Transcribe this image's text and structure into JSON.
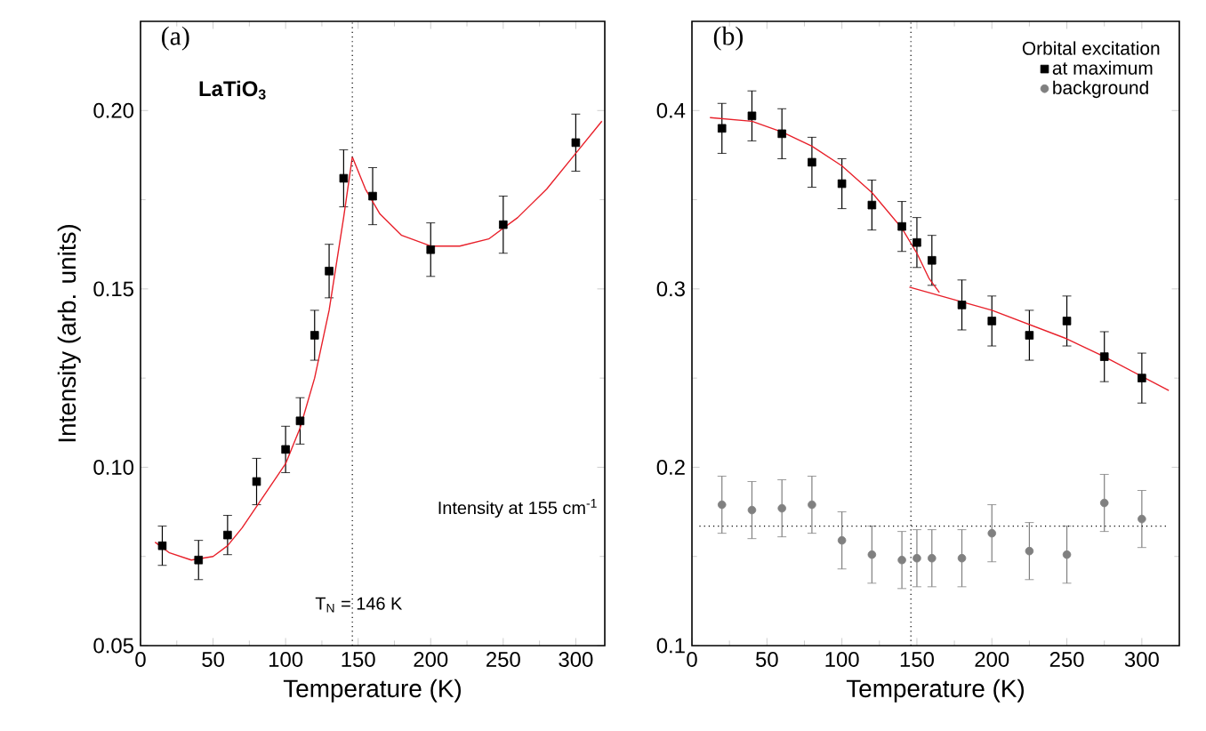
{
  "chart_data": [
    {
      "type": "scatter",
      "title": "(a)",
      "xlabel": "Temperature   (K)",
      "ylabel": "Intensity   (arb. units)",
      "xlim": [
        0,
        320
      ],
      "ylim": [
        0.05,
        0.225
      ],
      "xticks": [
        0,
        50,
        100,
        150,
        200,
        250,
        300
      ],
      "yticks": [
        0.05,
        {
          "value": 0.1,
          "label": "0.10"
        },
        0.15,
        {
          "value": 0.2,
          "label": "0.20"
        }
      ],
      "annotations": [
        "LaTiO$_{3}$",
        "T$_{N}$ = 146 K",
        "Intensity at 155 cm$^{-1}$"
      ],
      "ref_lines": [
        {
          "axis": "x",
          "value": 146,
          "line_style": "dotted",
          "color": "#000000"
        }
      ],
      "series": [
        {
          "type": "scatter",
          "marker": "square",
          "color": "#000000",
          "x": [
            15,
            40,
            60,
            80,
            100,
            110,
            120,
            130,
            140,
            160,
            200,
            250,
            300
          ],
          "values": [
            0.078,
            0.074,
            0.081,
            0.096,
            0.105,
            0.113,
            0.137,
            0.155,
            0.181,
            0.176,
            0.161,
            0.168,
            0.191
          ],
          "errors": [
            0.0055,
            0.0055,
            0.0055,
            0.0065,
            0.0065,
            0.0065,
            0.007,
            0.0075,
            0.008,
            0.008,
            0.0075,
            0.008,
            0.008
          ]
        },
        {
          "type": "line",
          "color": "#e8202a",
          "x": [
            10,
            20,
            35,
            50,
            60,
            70,
            80,
            90,
            100,
            110,
            120,
            130,
            140,
            146
          ],
          "values": [
            0.079,
            0.076,
            0.074,
            0.075,
            0.078,
            0.083,
            0.089,
            0.095,
            0.101,
            0.111,
            0.125,
            0.144,
            0.17,
            0.187
          ]
        },
        {
          "type": "line",
          "color": "#e8202a",
          "x": [
            146,
            155,
            165,
            180,
            200,
            220,
            240,
            260,
            280,
            300,
            318
          ],
          "values": [
            0.187,
            0.178,
            0.171,
            0.165,
            0.162,
            0.162,
            0.164,
            0.17,
            0.178,
            0.188,
            0.197
          ]
        }
      ]
    },
    {
      "type": "scatter",
      "title": "(b)",
      "xlabel": "Temperature   (K)",
      "xlim": [
        0,
        325
      ],
      "ylim": [
        0.1,
        0.45
      ],
      "xticks": [
        0,
        50,
        100,
        150,
        200,
        250,
        300
      ],
      "yticks": [
        0.1,
        0.2,
        0.3,
        0.4
      ],
      "legend": "top right",
      "legend_title": "Orbital excitation",
      "ref_lines": [
        {
          "axis": "x",
          "value": 146,
          "line_style": "dotted",
          "color": "#000000"
        },
        {
          "axis": "y",
          "value": 0.167,
          "line_style": "dotted",
          "color": "#000000"
        }
      ],
      "series": [
        {
          "name": "at maximum",
          "type": "scatter",
          "marker": "square",
          "color": "#000000",
          "x": [
            20,
            40,
            60,
            80,
            100,
            120,
            140,
            150,
            160,
            180,
            200,
            225,
            250,
            275,
            300
          ],
          "values": [
            0.39,
            0.397,
            0.387,
            0.371,
            0.359,
            0.347,
            0.335,
            0.326,
            0.316,
            0.291,
            0.282,
            0.274,
            0.282,
            0.262,
            0.25
          ],
          "errors": [
            0.014,
            0.014,
            0.014,
            0.014,
            0.014,
            0.014,
            0.014,
            0.014,
            0.014,
            0.014,
            0.014,
            0.014,
            0.014,
            0.014,
            0.014
          ]
        },
        {
          "name": "background",
          "type": "scatter",
          "marker": "circle",
          "color": "#808080",
          "x": [
            20,
            40,
            60,
            80,
            100,
            120,
            140,
            150,
            160,
            180,
            200,
            225,
            250,
            275,
            300
          ],
          "values": [
            0.179,
            0.176,
            0.177,
            0.179,
            0.159,
            0.151,
            0.148,
            0.149,
            0.149,
            0.149,
            0.163,
            0.153,
            0.151,
            0.18,
            0.171
          ],
          "errors": [
            0.016,
            0.016,
            0.016,
            0.016,
            0.016,
            0.016,
            0.016,
            0.016,
            0.016,
            0.016,
            0.016,
            0.016,
            0.016,
            0.016,
            0.016
          ]
        },
        {
          "type": "line",
          "color": "#e8202a",
          "x": [
            12,
            40,
            60,
            80,
            100,
            120,
            140,
            150,
            158,
            165
          ],
          "values": [
            0.396,
            0.394,
            0.388,
            0.38,
            0.369,
            0.354,
            0.334,
            0.32,
            0.306,
            0.298
          ]
        },
        {
          "type": "line",
          "color": "#e8202a",
          "x": [
            145,
            200,
            250,
            275,
            318
          ],
          "values": [
            0.301,
            0.288,
            0.272,
            0.262,
            0.243
          ]
        }
      ]
    }
  ]
}
